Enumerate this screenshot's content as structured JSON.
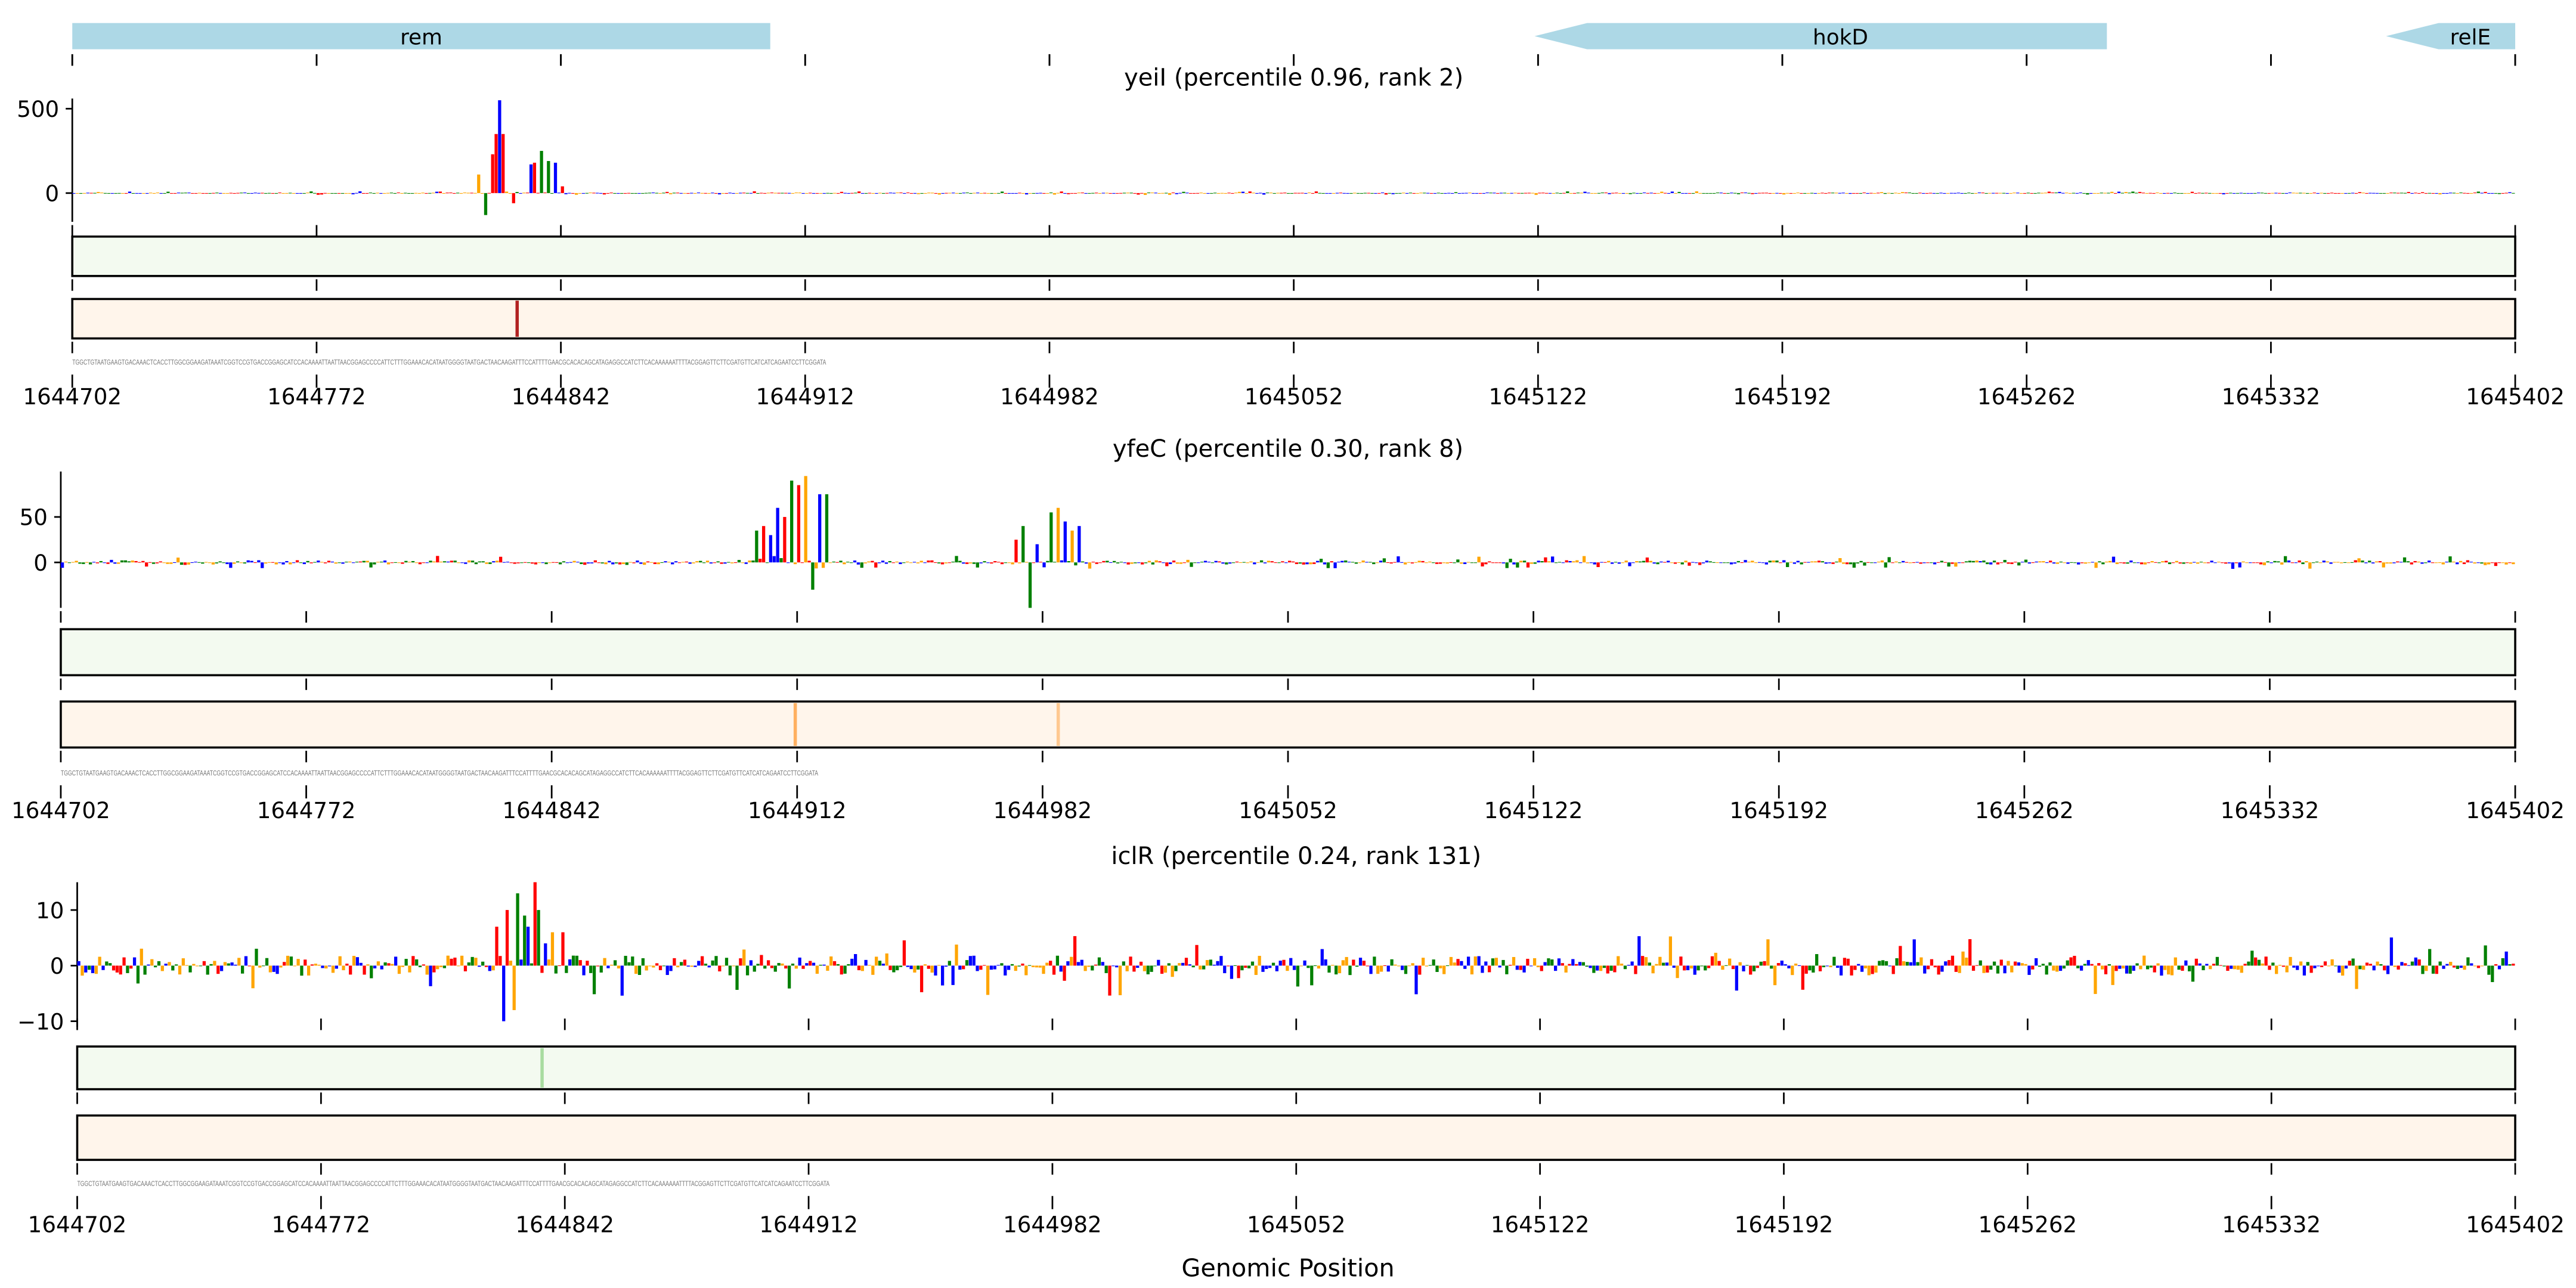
{
  "colors": {
    "A": "#ff0000",
    "C": "#0000ff",
    "G": "#ffa500",
    "T": "#008000",
    "gene": "#add8e6",
    "green_bg": "#f3faf0",
    "orange_bg": "#fff5eb"
  },
  "genes": [
    {
      "name": "rem",
      "start": 1644702,
      "end": 1644902,
      "strand": "+"
    },
    {
      "name": "hokD",
      "start": 1645121,
      "end": 1645285,
      "strand": "-"
    },
    {
      "name": "relE",
      "start": 1645365,
      "end": 1645402,
      "strand": "-"
    }
  ],
  "xlabel": "Genomic Position",
  "sequence_visible": "TGGCTGTAATGAAGTGACAAACTCACCTTGGCGGAAGATAAATCGGTCCGTGACCGGAGCATCCACAAAATTAATTAACGGAGCCCCATTCTTTGGAAACACATAATGGGGTAATGACTAACAAGATTTCCATTTTGAACGCACACAGCATAGAGGCCATCTTCACAAAAAATTTTACGGAGTTCTTCGATGTTCATCATCAGAATCCTTCGGATA",
  "chart_data": [
    {
      "type": "sequence-logo",
      "title": "yeiI (percentile 0.96, rank 2)",
      "xlim": [
        1644702,
        1645402
      ],
      "xticks": [
        "1644702",
        "1644772",
        "1644842",
        "1644912",
        "1644982",
        "1645052",
        "1645122",
        "1645192",
        "1645262",
        "1645332",
        "1645402"
      ],
      "ylim": [
        -170,
        560
      ],
      "yticks": [
        {
          "v": 0,
          "label": "0"
        },
        {
          "v": 500,
          "label": "500"
        }
      ],
      "noise": 6,
      "peaks": [
        [
          1644818,
          110,
          "G"
        ],
        [
          1644820,
          -130,
          "T"
        ],
        [
          1644822,
          230,
          "A"
        ],
        [
          1644823,
          350,
          "A"
        ],
        [
          1644824,
          550,
          "C"
        ],
        [
          1644825,
          350,
          "A"
        ],
        [
          1644828,
          -60,
          "A"
        ],
        [
          1644833,
          170,
          "C"
        ],
        [
          1644834,
          180,
          "A"
        ],
        [
          1644836,
          250,
          "T"
        ],
        [
          1644838,
          190,
          "T"
        ],
        [
          1644840,
          180,
          "C"
        ],
        [
          1644842,
          40,
          "A"
        ]
      ],
      "green_highlights": [],
      "orange_highlights": [
        {
          "pos": 1644829,
          "color": "#b22222"
        }
      ]
    },
    {
      "type": "sequence-logo",
      "title": "yfeC (percentile 0.30, rank 8)",
      "xlim": [
        1644702,
        1645402
      ],
      "xticks": [
        "1644702",
        "1644772",
        "1644842",
        "1644912",
        "1644982",
        "1645052",
        "1645122",
        "1645192",
        "1645262",
        "1645332",
        "1645402"
      ],
      "ylim": [
        -50,
        100
      ],
      "yticks": [
        {
          "v": 0,
          "label": "0"
        },
        {
          "v": 50,
          "label": "50"
        }
      ],
      "noise": 4,
      "peaks": [
        [
          1644900,
          35,
          "T"
        ],
        [
          1644902,
          40,
          "A"
        ],
        [
          1644904,
          30,
          "C"
        ],
        [
          1644906,
          60,
          "C"
        ],
        [
          1644908,
          50,
          "A"
        ],
        [
          1644910,
          90,
          "T"
        ],
        [
          1644912,
          85,
          "A"
        ],
        [
          1644914,
          95,
          "G"
        ],
        [
          1644916,
          -30,
          "T"
        ],
        [
          1644918,
          75,
          "C"
        ],
        [
          1644920,
          75,
          "T"
        ],
        [
          1644974,
          25,
          "A"
        ],
        [
          1644976,
          40,
          "T"
        ],
        [
          1644978,
          -50,
          "T"
        ],
        [
          1644980,
          20,
          "C"
        ],
        [
          1644984,
          55,
          "T"
        ],
        [
          1644986,
          60,
          "G"
        ],
        [
          1644988,
          45,
          "C"
        ],
        [
          1644990,
          35,
          "G"
        ],
        [
          1644992,
          40,
          "C"
        ]
      ],
      "green_highlights": [],
      "orange_highlights": [
        {
          "pos": 1644911,
          "color": "#ffb060"
        },
        {
          "pos": 1644986,
          "color": "#ffc890"
        }
      ]
    },
    {
      "type": "sequence-logo",
      "title": "iclR (percentile 0.24, rank 131)",
      "xlim": [
        1644702,
        1645402
      ],
      "xticks": [
        "1644702",
        "1644772",
        "1644842",
        "1644912",
        "1644982",
        "1645052",
        "1645122",
        "1645192",
        "1645262",
        "1645332",
        "1645402"
      ],
      "ylim": [
        -11,
        15
      ],
      "yticks": [
        {
          "v": -10,
          "label": "−10"
        },
        {
          "v": 0,
          "label": "0"
        },
        {
          "v": 10,
          "label": "10"
        }
      ],
      "noise": 3,
      "peaks": [
        [
          1644822,
          7,
          "A"
        ],
        [
          1644824,
          -10,
          "C"
        ],
        [
          1644825,
          10,
          "A"
        ],
        [
          1644827,
          -8,
          "G"
        ],
        [
          1644828,
          13,
          "T"
        ],
        [
          1644830,
          9,
          "T"
        ],
        [
          1644831,
          7,
          "C"
        ],
        [
          1644833,
          15,
          "A"
        ],
        [
          1644834,
          10,
          "T"
        ],
        [
          1644836,
          4,
          "C"
        ],
        [
          1644838,
          6,
          "G"
        ],
        [
          1644841,
          6,
          "A"
        ]
      ],
      "green_highlights": [
        {
          "pos": 1644835,
          "color": "#a8dca0"
        }
      ],
      "orange_highlights": []
    }
  ]
}
